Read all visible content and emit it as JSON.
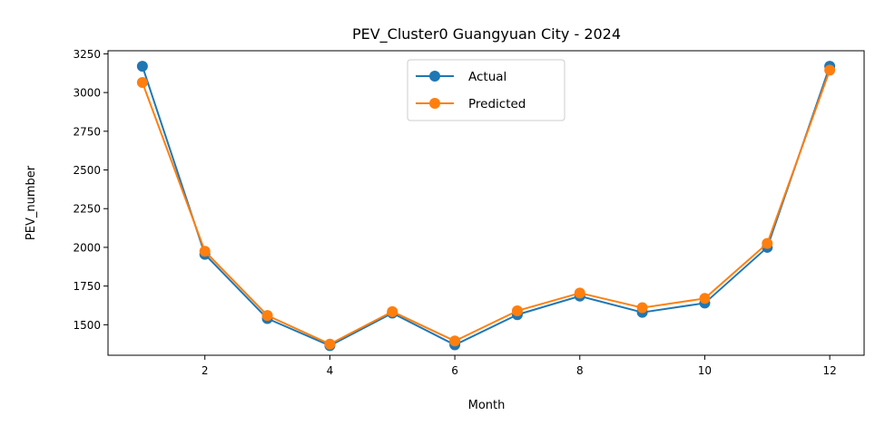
{
  "chart_data": {
    "type": "line",
    "title": "PEV_Cluster0 Guangyuan City - 2024",
    "xlabel": "Month",
    "ylabel": "PEV_number",
    "x": [
      1,
      2,
      3,
      4,
      5,
      6,
      7,
      8,
      9,
      10,
      11,
      12
    ],
    "xticks": [
      2,
      4,
      6,
      8,
      10,
      12
    ],
    "yticks": [
      1500,
      1750,
      2000,
      2250,
      2500,
      2750,
      3000,
      3250
    ],
    "xlim": [
      0.45,
      12.55
    ],
    "ylim": [
      1303,
      3270
    ],
    "grid": false,
    "legend_position": "upper center",
    "series": [
      {
        "name": "Actual",
        "color": "#1f77b4",
        "values": [
          3170,
          1955,
          1540,
          1365,
          1575,
          1370,
          1565,
          1685,
          1580,
          1640,
          2000,
          3170
        ]
      },
      {
        "name": "Predicted",
        "color": "#ff7f0e",
        "values": [
          3065,
          1975,
          1560,
          1375,
          1585,
          1395,
          1590,
          1705,
          1610,
          1670,
          2025,
          3145
        ]
      }
    ]
  }
}
